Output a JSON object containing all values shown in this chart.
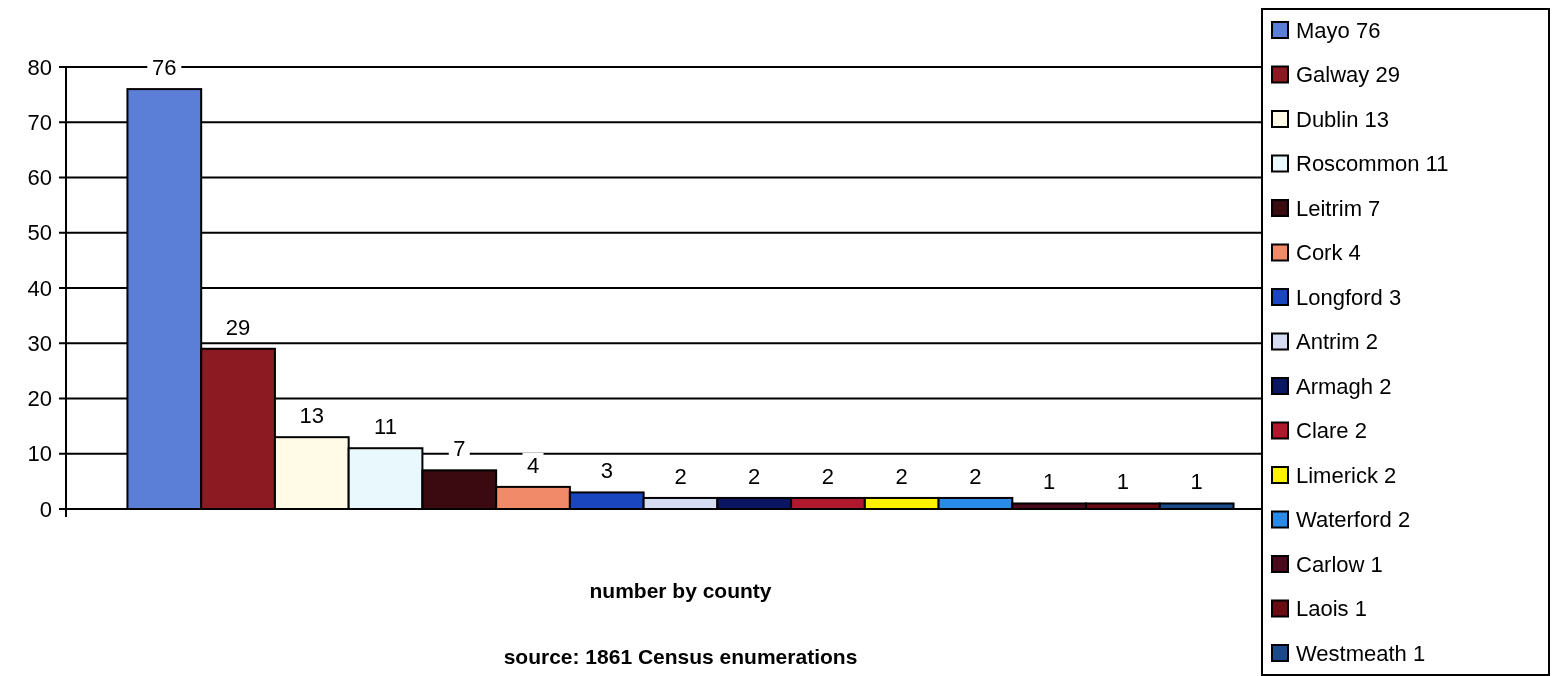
{
  "chart_data": {
    "type": "bar",
    "xlabel": "number by county",
    "annotations": [
      "source: 1861 Census enumerations"
    ],
    "categories": [
      null
    ],
    "ylim": [
      0,
      80
    ],
    "yticks": [
      0,
      10,
      20,
      30,
      40,
      50,
      60,
      70,
      80
    ],
    "grid": "y",
    "legend": "right",
    "data_labels": true,
    "series": [
      {
        "name": "Mayo 76",
        "color": "#5b7fd6",
        "values": [
          76
        ]
      },
      {
        "name": "Galway 29",
        "color": "#8b1a22",
        "values": [
          29
        ]
      },
      {
        "name": "Dublin 13",
        "color": "#fffbe6",
        "values": [
          13
        ]
      },
      {
        "name": "Roscommon 11",
        "color": "#e8f8fc",
        "values": [
          11
        ]
      },
      {
        "name": "Leitrim 7",
        "color": "#3a0a10",
        "values": [
          7
        ]
      },
      {
        "name": "Cork 4",
        "color": "#f08a68",
        "values": [
          4
        ]
      },
      {
        "name": "Longford 3",
        "color": "#1a46c0",
        "values": [
          3
        ]
      },
      {
        "name": "Antrim 2",
        "color": "#d6dcf2",
        "values": [
          2
        ]
      },
      {
        "name": "Armagh 2",
        "color": "#0a1660",
        "values": [
          2
        ]
      },
      {
        "name": "Clare 2",
        "color": "#b0182e",
        "values": [
          2
        ]
      },
      {
        "name": "Limerick 2",
        "color": "#fff200",
        "values": [
          2
        ]
      },
      {
        "name": "Waterford 2",
        "color": "#2a8ae8",
        "values": [
          2
        ]
      },
      {
        "name": "Carlow 1",
        "color": "#4a0a1e",
        "values": [
          1
        ]
      },
      {
        "name": "Laois 1",
        "color": "#6a0a12",
        "values": [
          1
        ]
      },
      {
        "name": "Westmeath 1",
        "color": "#1a4a8a",
        "values": [
          1
        ]
      }
    ]
  }
}
